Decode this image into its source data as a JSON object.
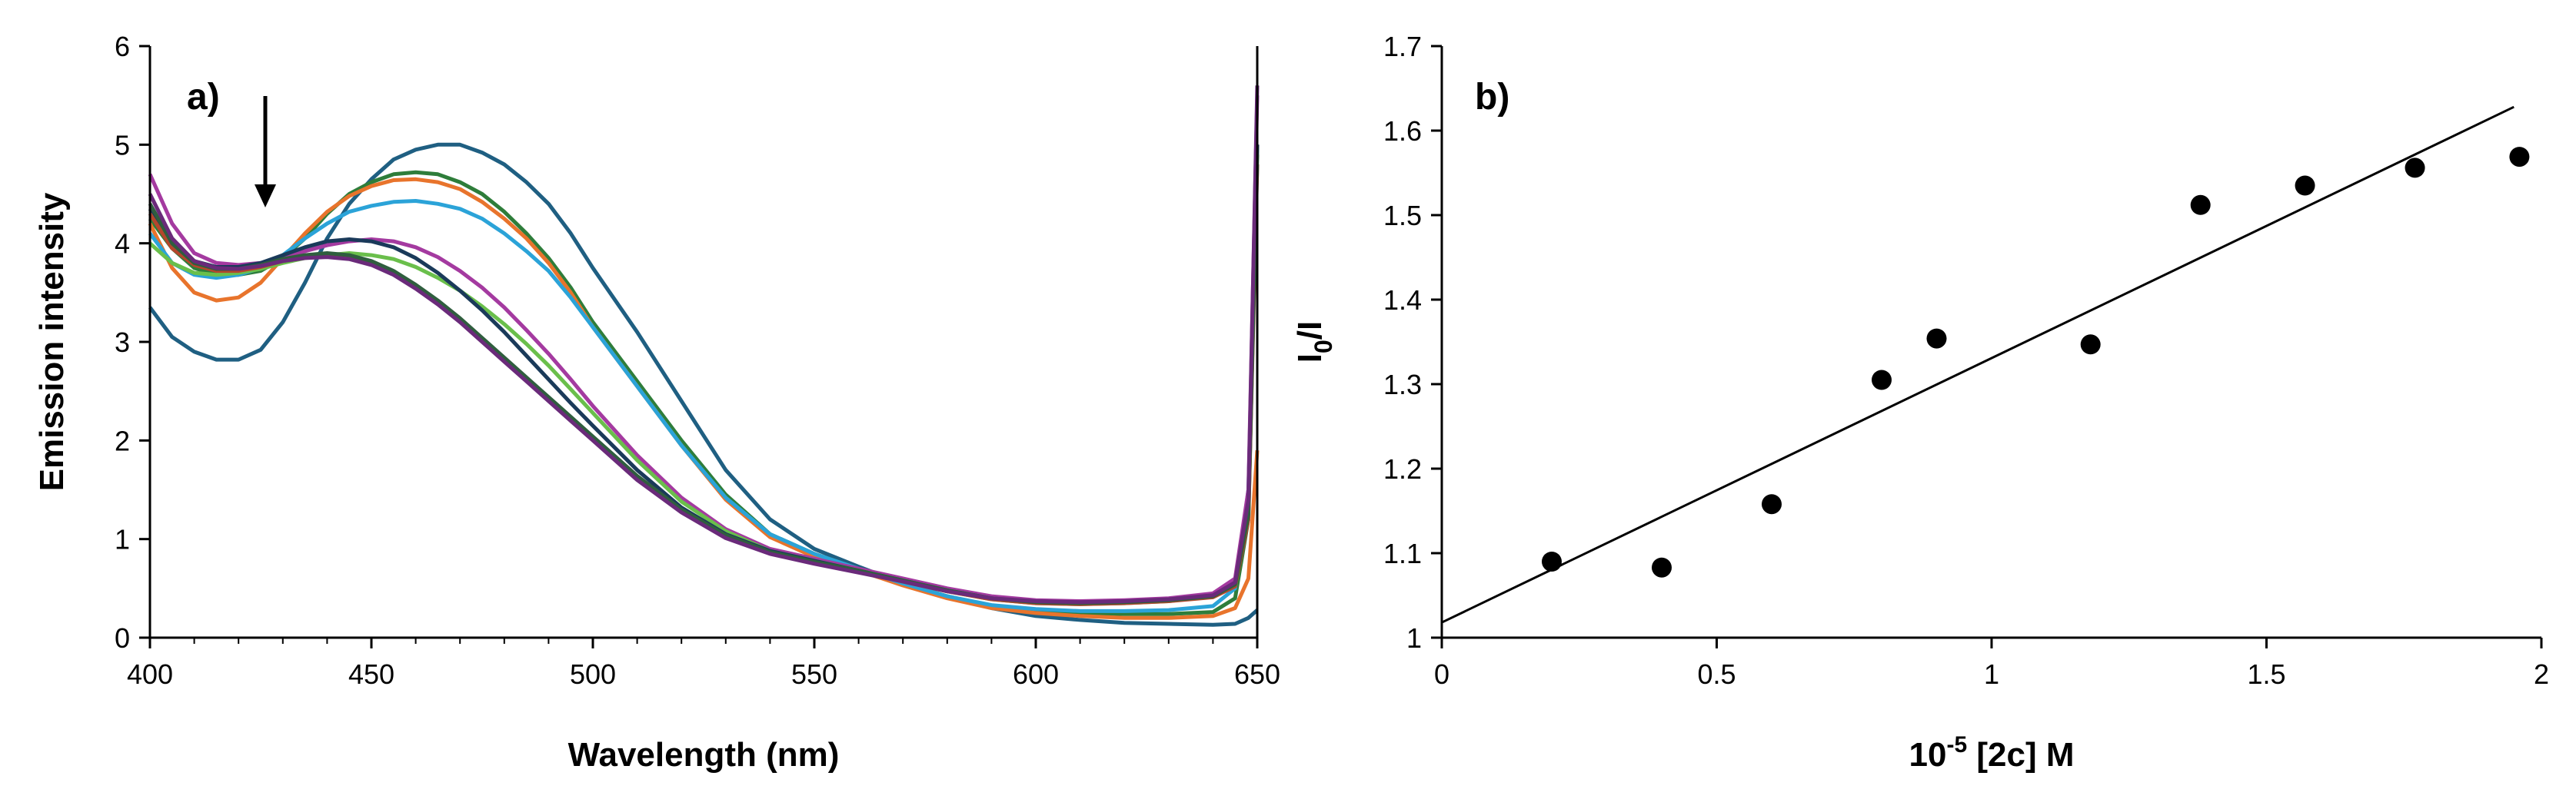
{
  "chart_data": [
    {
      "type": "line",
      "panel_label": "a)",
      "xlabel": "Wavelength (nm)",
      "ylabel": "Emission intensity",
      "xlim": [
        400,
        650
      ],
      "ylim": [
        0,
        6
      ],
      "xticks": [
        400,
        450,
        500,
        550,
        600,
        650
      ],
      "yticks": [
        0,
        1,
        2,
        3,
        4,
        5,
        6
      ],
      "grid": false,
      "legend": "none",
      "annotation": "downward arrow near 426 nm indicating decreasing intensity",
      "series": [
        {
          "color": "#1f5f82",
          "x": [
            400,
            405,
            410,
            415,
            420,
            425,
            430,
            435,
            440,
            445,
            450,
            455,
            460,
            465,
            470,
            475,
            480,
            485,
            490,
            495,
            500,
            510,
            520,
            530,
            540,
            550,
            560,
            570,
            580,
            590,
            600,
            610,
            620,
            630,
            640,
            645,
            648,
            650
          ],
          "y": [
            3.35,
            3.05,
            2.9,
            2.82,
            2.82,
            2.92,
            3.2,
            3.6,
            4.05,
            4.4,
            4.65,
            4.85,
            4.95,
            5.0,
            5.0,
            4.92,
            4.8,
            4.62,
            4.4,
            4.1,
            3.75,
            3.1,
            2.4,
            1.7,
            1.2,
            0.9,
            0.72,
            0.55,
            0.42,
            0.3,
            0.22,
            0.18,
            0.15,
            0.14,
            0.13,
            0.14,
            0.2,
            0.28
          ]
        },
        {
          "color": "#2e7d3a",
          "x": [
            400,
            405,
            410,
            415,
            420,
            425,
            430,
            435,
            440,
            445,
            450,
            455,
            460,
            465,
            470,
            475,
            480,
            485,
            490,
            495,
            500,
            510,
            520,
            530,
            540,
            550,
            560,
            570,
            580,
            590,
            600,
            610,
            620,
            630,
            640,
            645,
            648,
            650
          ],
          "y": [
            4.25,
            3.95,
            3.75,
            3.68,
            3.68,
            3.72,
            3.85,
            4.05,
            4.3,
            4.5,
            4.62,
            4.7,
            4.72,
            4.7,
            4.62,
            4.5,
            4.32,
            4.1,
            3.85,
            3.55,
            3.2,
            2.6,
            2.0,
            1.45,
            1.05,
            0.85,
            0.7,
            0.55,
            0.42,
            0.32,
            0.28,
            0.25,
            0.24,
            0.24,
            0.26,
            0.4,
            1.2,
            5.0
          ]
        },
        {
          "color": "#e8742c",
          "x": [
            400,
            405,
            410,
            415,
            420,
            425,
            430,
            435,
            440,
            445,
            450,
            455,
            460,
            465,
            470,
            475,
            480,
            485,
            490,
            495,
            500,
            510,
            520,
            530,
            540,
            550,
            560,
            570,
            580,
            590,
            600,
            610,
            620,
            630,
            640,
            645,
            648,
            650
          ],
          "y": [
            4.2,
            3.75,
            3.5,
            3.42,
            3.45,
            3.6,
            3.85,
            4.1,
            4.32,
            4.48,
            4.58,
            4.64,
            4.65,
            4.62,
            4.55,
            4.42,
            4.25,
            4.05,
            3.8,
            3.5,
            3.15,
            2.55,
            1.95,
            1.4,
            1.02,
            0.82,
            0.68,
            0.53,
            0.4,
            0.3,
            0.25,
            0.22,
            0.2,
            0.2,
            0.22,
            0.3,
            0.6,
            1.9
          ]
        },
        {
          "color": "#2ba3d8",
          "x": [
            400,
            405,
            410,
            415,
            420,
            425,
            430,
            435,
            440,
            445,
            450,
            455,
            460,
            465,
            470,
            475,
            480,
            485,
            490,
            495,
            500,
            510,
            520,
            530,
            540,
            550,
            560,
            570,
            580,
            590,
            600,
            610,
            620,
            630,
            640,
            645,
            648,
            650
          ],
          "y": [
            4.1,
            3.8,
            3.68,
            3.65,
            3.68,
            3.75,
            3.88,
            4.05,
            4.2,
            4.32,
            4.38,
            4.42,
            4.43,
            4.4,
            4.35,
            4.25,
            4.1,
            3.92,
            3.72,
            3.45,
            3.15,
            2.55,
            1.95,
            1.42,
            1.05,
            0.85,
            0.7,
            0.55,
            0.42,
            0.33,
            0.29,
            0.27,
            0.27,
            0.28,
            0.32,
            0.5,
            1.5,
            4.8
          ]
        },
        {
          "color": "#a43aa0",
          "x": [
            400,
            405,
            410,
            415,
            420,
            425,
            430,
            435,
            440,
            445,
            450,
            455,
            460,
            465,
            470,
            475,
            480,
            485,
            490,
            495,
            500,
            510,
            520,
            530,
            540,
            550,
            560,
            570,
            580,
            590,
            600,
            610,
            620,
            630,
            640,
            645,
            648,
            650
          ],
          "y": [
            4.7,
            4.2,
            3.9,
            3.8,
            3.78,
            3.8,
            3.85,
            3.92,
            3.98,
            4.02,
            4.04,
            4.02,
            3.96,
            3.86,
            3.72,
            3.55,
            3.35,
            3.12,
            2.88,
            2.62,
            2.35,
            1.85,
            1.42,
            1.1,
            0.9,
            0.8,
            0.7,
            0.6,
            0.5,
            0.42,
            0.38,
            0.37,
            0.38,
            0.4,
            0.45,
            0.6,
            1.5,
            5.5
          ]
        },
        {
          "color": "#6abf4b",
          "x": [
            400,
            405,
            410,
            415,
            420,
            425,
            430,
            435,
            440,
            445,
            450,
            455,
            460,
            465,
            470,
            475,
            480,
            485,
            490,
            495,
            500,
            510,
            520,
            530,
            540,
            550,
            560,
            570,
            580,
            590,
            600,
            610,
            620,
            630,
            640,
            645,
            648,
            650
          ],
          "y": [
            4.0,
            3.8,
            3.7,
            3.68,
            3.7,
            3.74,
            3.8,
            3.85,
            3.88,
            3.9,
            3.88,
            3.84,
            3.76,
            3.65,
            3.52,
            3.36,
            3.18,
            2.98,
            2.76,
            2.52,
            2.28,
            1.8,
            1.38,
            1.08,
            0.88,
            0.78,
            0.68,
            0.57,
            0.47,
            0.39,
            0.35,
            0.34,
            0.35,
            0.37,
            0.42,
            0.55,
            1.3,
            5.0
          ]
        },
        {
          "color": "#1a3a5a",
          "x": [
            400,
            405,
            410,
            415,
            420,
            425,
            430,
            435,
            440,
            445,
            450,
            455,
            460,
            465,
            470,
            475,
            480,
            485,
            490,
            495,
            500,
            510,
            520,
            530,
            540,
            550,
            560,
            570,
            580,
            590,
            600,
            610,
            620,
            630,
            640,
            645,
            648,
            650
          ],
          "y": [
            4.35,
            4.0,
            3.82,
            3.76,
            3.76,
            3.8,
            3.88,
            3.96,
            4.02,
            4.04,
            4.02,
            3.96,
            3.85,
            3.7,
            3.52,
            3.32,
            3.1,
            2.86,
            2.62,
            2.38,
            2.15,
            1.7,
            1.32,
            1.05,
            0.88,
            0.78,
            0.68,
            0.58,
            0.48,
            0.4,
            0.36,
            0.35,
            0.36,
            0.38,
            0.42,
            0.55,
            1.3,
            5.0
          ]
        },
        {
          "color": "#b5462c",
          "x": [
            400,
            405,
            410,
            415,
            420,
            425,
            430,
            435,
            440,
            445,
            450,
            455,
            460,
            465,
            470,
            475,
            480,
            485,
            490,
            495,
            500,
            510,
            520,
            530,
            540,
            550,
            560,
            570,
            580,
            590,
            600,
            610,
            620,
            630,
            640,
            645,
            648,
            650
          ],
          "y": [
            4.3,
            3.95,
            3.78,
            3.72,
            3.72,
            3.76,
            3.82,
            3.86,
            3.88,
            3.86,
            3.8,
            3.7,
            3.56,
            3.4,
            3.22,
            3.02,
            2.82,
            2.62,
            2.42,
            2.22,
            2.02,
            1.62,
            1.28,
            1.02,
            0.86,
            0.76,
            0.67,
            0.57,
            0.47,
            0.39,
            0.35,
            0.34,
            0.35,
            0.37,
            0.41,
            0.52,
            1.2,
            4.8
          ]
        },
        {
          "color": "#2f5e3e",
          "x": [
            400,
            405,
            410,
            415,
            420,
            425,
            430,
            435,
            440,
            445,
            450,
            455,
            460,
            465,
            470,
            475,
            480,
            485,
            490,
            495,
            500,
            510,
            520,
            530,
            540,
            550,
            560,
            570,
            580,
            590,
            600,
            610,
            620,
            630,
            640,
            645,
            648,
            650
          ],
          "y": [
            4.4,
            4.0,
            3.8,
            3.74,
            3.74,
            3.78,
            3.84,
            3.88,
            3.9,
            3.88,
            3.82,
            3.72,
            3.58,
            3.42,
            3.24,
            3.04,
            2.84,
            2.64,
            2.44,
            2.24,
            2.04,
            1.64,
            1.3,
            1.04,
            0.87,
            0.77,
            0.68,
            0.58,
            0.48,
            0.4,
            0.36,
            0.35,
            0.36,
            0.38,
            0.42,
            0.54,
            1.25,
            4.9
          ]
        },
        {
          "color": "#6a2a7a",
          "x": [
            400,
            405,
            410,
            415,
            420,
            425,
            430,
            435,
            440,
            445,
            450,
            455,
            460,
            465,
            470,
            475,
            480,
            485,
            490,
            495,
            500,
            510,
            520,
            530,
            540,
            550,
            560,
            570,
            580,
            590,
            600,
            610,
            620,
            630,
            640,
            645,
            648,
            650
          ],
          "y": [
            4.5,
            4.05,
            3.82,
            3.75,
            3.74,
            3.77,
            3.82,
            3.85,
            3.86,
            3.84,
            3.78,
            3.68,
            3.54,
            3.38,
            3.2,
            3.0,
            2.8,
            2.6,
            2.4,
            2.2,
            2.0,
            1.6,
            1.27,
            1.01,
            0.85,
            0.75,
            0.66,
            0.57,
            0.47,
            0.4,
            0.37,
            0.36,
            0.37,
            0.39,
            0.43,
            0.56,
            1.4,
            5.6
          ]
        }
      ]
    },
    {
      "type": "scatter",
      "panel_label": "b)",
      "xlabel": "10",
      "xlabel_exp": "-5",
      "xlabel_rest": " [2c] M",
      "ylabel": "I",
      "ylabel_sub": "0",
      "ylabel_rest": "/I",
      "xlim": [
        0,
        2
      ],
      "ylim": [
        1,
        1.7
      ],
      "xticks": [
        "0",
        "0.5",
        "1",
        "1.5",
        "2"
      ],
      "yticks": [
        "1",
        "1.1",
        "1.2",
        "1.3",
        "1.4",
        "1.5",
        "1.6",
        "1.7"
      ],
      "grid": false,
      "legend": "none",
      "points": {
        "x": [
          0.2,
          0.4,
          0.6,
          0.8,
          0.9,
          1.18,
          1.38,
          1.57,
          1.77,
          1.96
        ],
        "y": [
          1.09,
          1.083,
          1.158,
          1.305,
          1.354,
          1.347,
          1.512,
          1.535,
          1.556,
          1.569
        ]
      },
      "fit_line": {
        "x": [
          0,
          1.95
        ],
        "y": [
          1.018,
          1.628
        ]
      }
    }
  ]
}
